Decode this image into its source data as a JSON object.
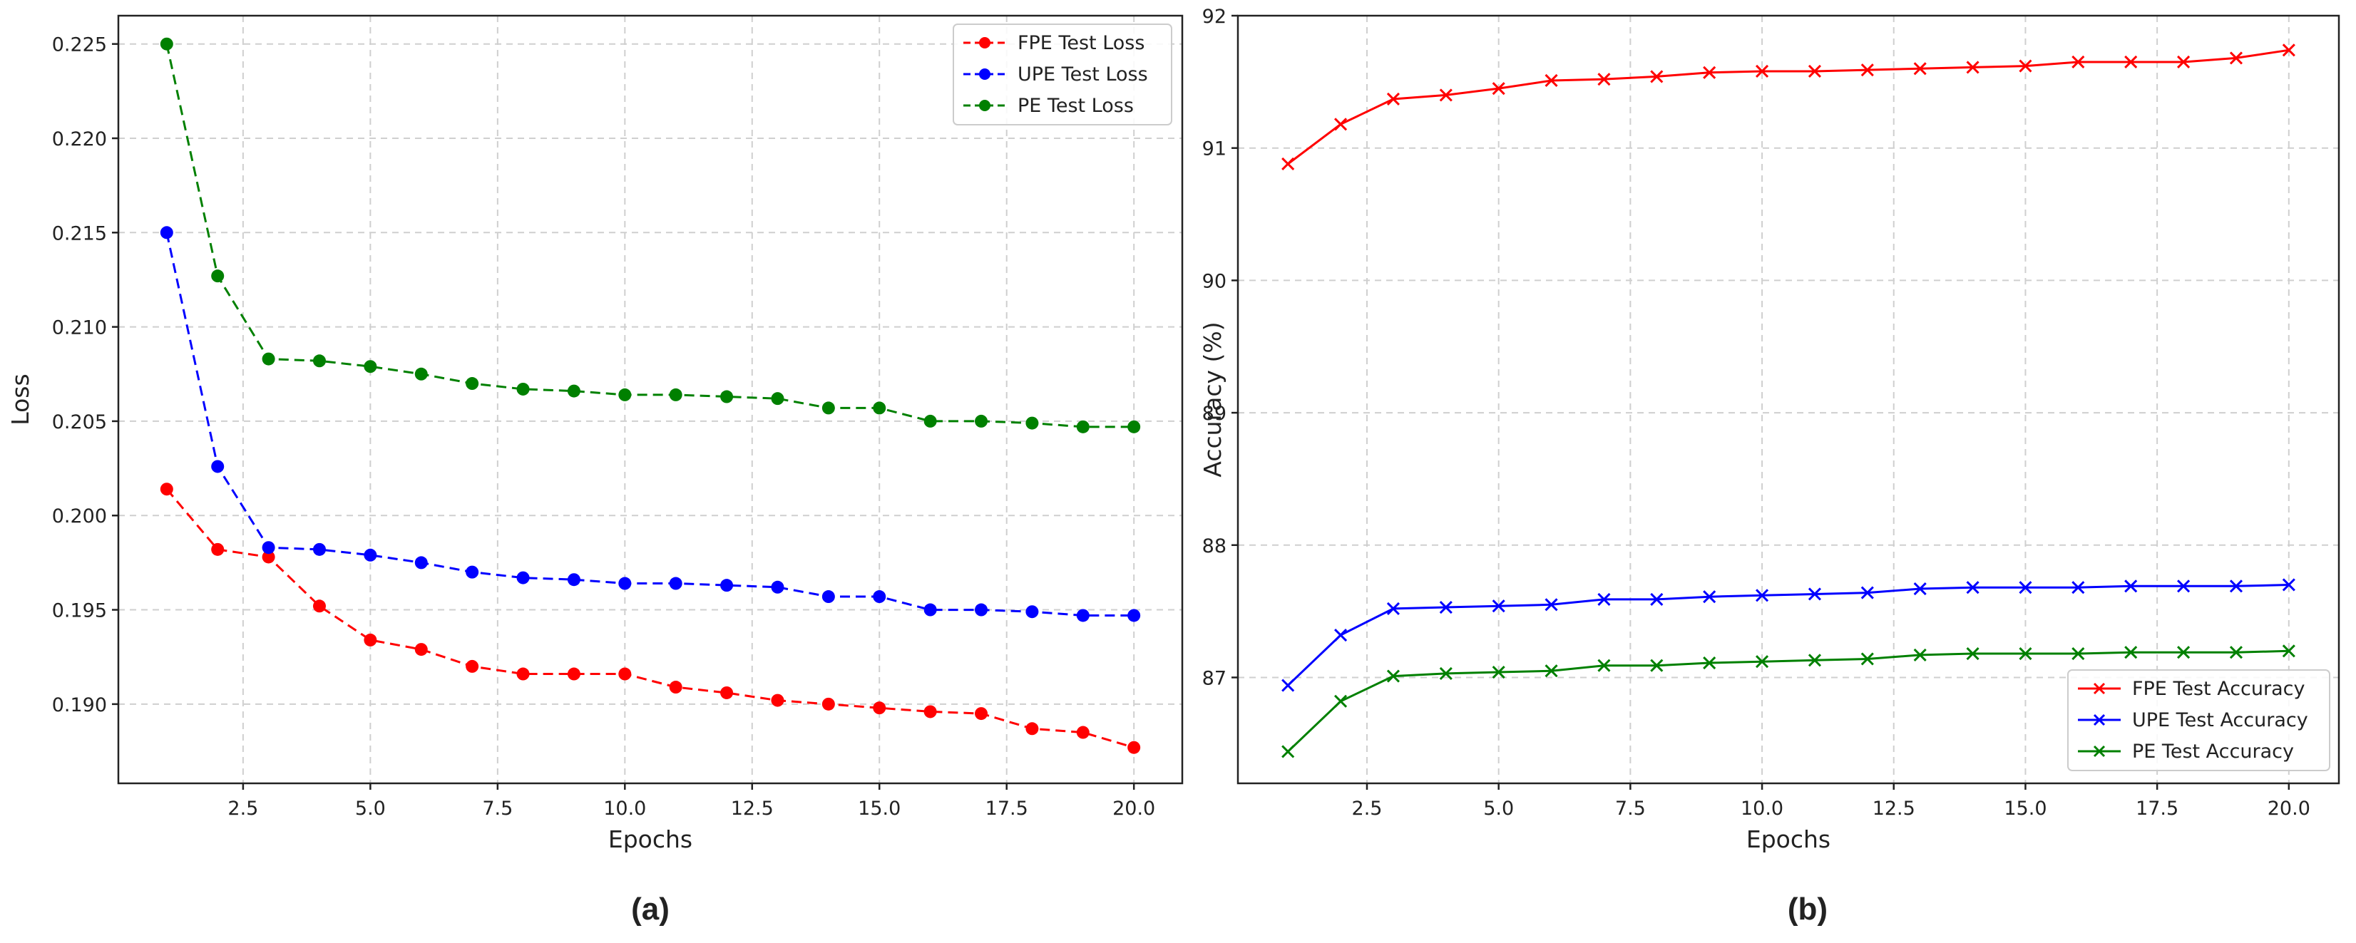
{
  "chart_data": [
    {
      "type": "line",
      "panel": "(a)",
      "title": "",
      "xlabel": "Epochs",
      "ylabel": "Loss",
      "x": [
        1,
        2,
        3,
        4,
        5,
        6,
        7,
        8,
        9,
        10,
        11,
        12,
        13,
        14,
        15,
        16,
        17,
        18,
        19,
        20
      ],
      "xlim": [
        0.05,
        20.95
      ],
      "ylim": [
        0.1858,
        0.2265
      ],
      "xticks": [
        2.5,
        5.0,
        7.5,
        10.0,
        12.5,
        15.0,
        17.5,
        20.0
      ],
      "xtick_labels": [
        "2.5",
        "5.0",
        "7.5",
        "10.0",
        "12.5",
        "15.0",
        "17.5",
        "20.0"
      ],
      "yticks": [
        0.19,
        0.195,
        0.2,
        0.205,
        0.21,
        0.215,
        0.22,
        0.225
      ],
      "ytick_labels": [
        "0.190",
        "0.195",
        "0.200",
        "0.205",
        "0.210",
        "0.215",
        "0.220",
        "0.225"
      ],
      "grid": true,
      "legend_position": "top-right",
      "marker": "circle",
      "line_style": "dashed",
      "series": [
        {
          "name": "FPE Test Loss",
          "color": "#ff0000",
          "values": [
            0.2014,
            0.1982,
            0.1978,
            0.1952,
            0.1934,
            0.1929,
            0.192,
            0.1916,
            0.1916,
            0.1916,
            0.1909,
            0.1906,
            0.1902,
            0.19,
            0.1898,
            0.1896,
            0.1895,
            0.1887,
            0.1885,
            0.1877
          ]
        },
        {
          "name": "UPE Test Loss",
          "color": "#0000ff",
          "values": [
            0.215,
            0.2026,
            0.1983,
            0.1982,
            0.1979,
            0.1975,
            0.197,
            0.1967,
            0.1966,
            0.1964,
            0.1964,
            0.1963,
            0.1962,
            0.1957,
            0.1957,
            0.195,
            0.195,
            0.1949,
            0.1947,
            0.1947
          ]
        },
        {
          "name": "PE Test Loss",
          "color": "#008000",
          "values": [
            0.225,
            0.2127,
            0.2083,
            0.2082,
            0.2079,
            0.2075,
            0.207,
            0.2067,
            0.2066,
            0.2064,
            0.2064,
            0.2063,
            0.2062,
            0.2057,
            0.2057,
            0.205,
            0.205,
            0.2049,
            0.2047,
            0.2047
          ]
        }
      ]
    },
    {
      "type": "line",
      "panel": "(b)",
      "title": "",
      "xlabel": "Epochs",
      "ylabel": "Accuracy (%)",
      "x": [
        1,
        2,
        3,
        4,
        5,
        6,
        7,
        8,
        9,
        10,
        11,
        12,
        13,
        14,
        15,
        16,
        17,
        18,
        19,
        20
      ],
      "xlim": [
        0.05,
        20.95
      ],
      "ylim": [
        86.2,
        92.0
      ],
      "xticks": [
        2.5,
        5.0,
        7.5,
        10.0,
        12.5,
        15.0,
        17.5,
        20.0
      ],
      "xtick_labels": [
        "2.5",
        "5.0",
        "7.5",
        "10.0",
        "12.5",
        "15.0",
        "17.5",
        "20.0"
      ],
      "yticks": [
        87,
        88,
        89,
        90,
        91,
        92
      ],
      "ytick_labels": [
        "87",
        "88",
        "89",
        "90",
        "91",
        "92"
      ],
      "grid": true,
      "legend_position": "bottom-right",
      "marker": "x",
      "line_style": "solid",
      "series": [
        {
          "name": "FPE Test Accuracy",
          "color": "#ff0000",
          "values": [
            90.88,
            91.18,
            91.37,
            91.4,
            91.45,
            91.51,
            91.52,
            91.54,
            91.57,
            91.58,
            91.58,
            91.59,
            91.6,
            91.61,
            91.62,
            91.65,
            91.65,
            91.65,
            91.68,
            91.74
          ]
        },
        {
          "name": "UPE Test Accuracy",
          "color": "#0000ff",
          "values": [
            86.94,
            87.32,
            87.52,
            87.53,
            87.54,
            87.55,
            87.59,
            87.59,
            87.61,
            87.62,
            87.63,
            87.64,
            87.67,
            87.68,
            87.68,
            87.68,
            87.69,
            87.69,
            87.69,
            87.7
          ]
        },
        {
          "name": "PE Test Accuracy",
          "color": "#008000",
          "values": [
            86.44,
            86.82,
            87.01,
            87.03,
            87.04,
            87.05,
            87.09,
            87.09,
            87.11,
            87.12,
            87.13,
            87.14,
            87.17,
            87.18,
            87.18,
            87.18,
            87.19,
            87.19,
            87.19,
            87.2
          ]
        }
      ]
    }
  ]
}
